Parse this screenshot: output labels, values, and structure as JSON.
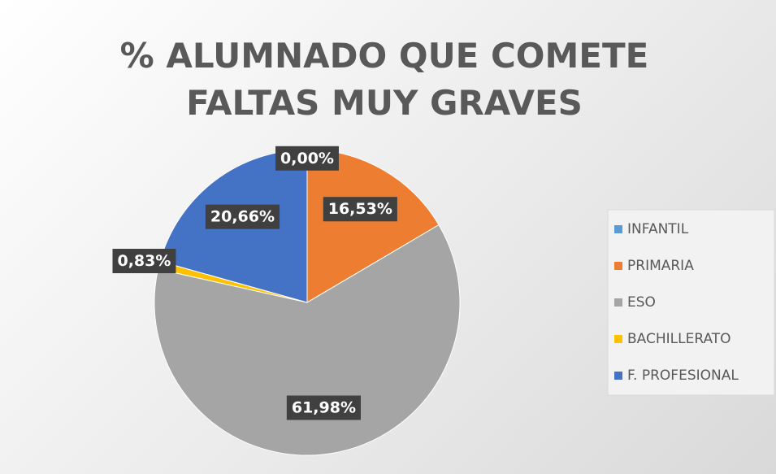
{
  "chart_data": {
    "type": "pie",
    "title": "% ALUMNADO QUE COMETE FALTAS MUY GRAVES",
    "categories": [
      "INFANTIL",
      "PRIMARIA",
      "ESO",
      "BACHILLERATO",
      "F. PROFESIONAL"
    ],
    "values": [
      0,
      16.53,
      61.98,
      0.83,
      20.66
    ],
    "value_labels": [
      "0,00%",
      "16,53%",
      "61,98%",
      "0,83%",
      "20,66%"
    ],
    "colors": [
      "#5b9bd5",
      "#ed7d31",
      "#a5a5a5",
      "#ffc000",
      "#4472c4"
    ],
    "legend": "right"
  }
}
